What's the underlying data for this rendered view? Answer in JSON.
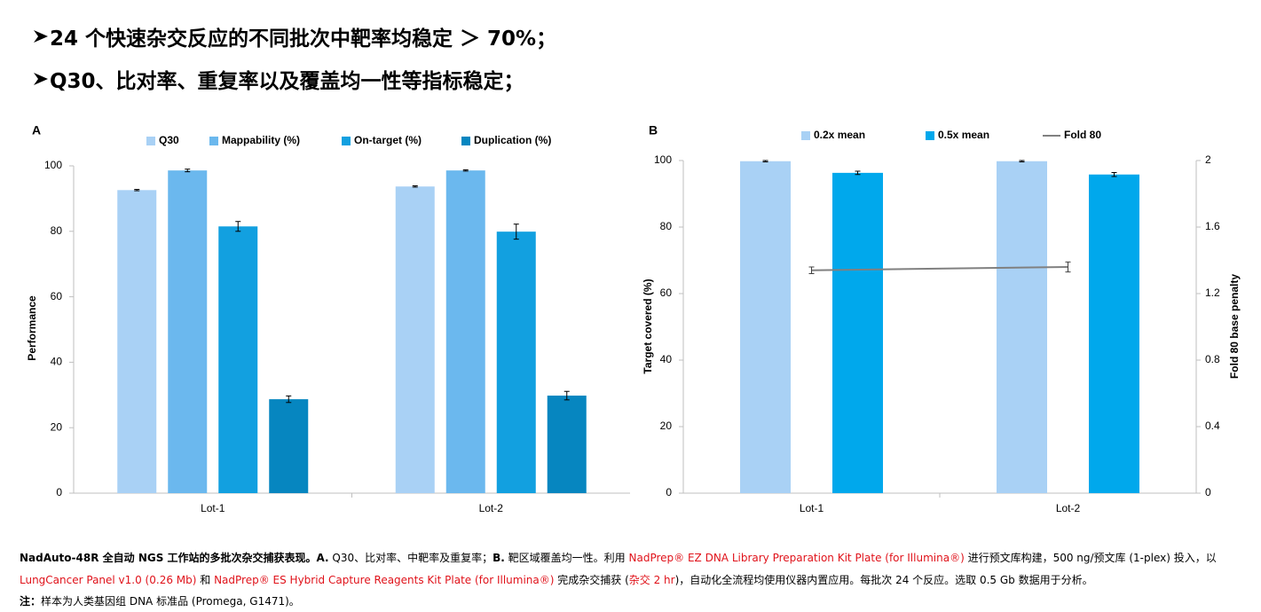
{
  "headings": [
    "24 个快速杂交反应的不同批次中靶率均稳定 ＞ 70%；",
    "Q30、比对率、重复率以及覆盖均一性等指标稳定；"
  ],
  "chart_data": [
    {
      "type": "bar",
      "label": "A",
      "ylabel": "Performance",
      "categories": [
        "Lot-1",
        "Lot-2"
      ],
      "series": [
        {
          "name": "Q30",
          "color": "#a9d1f5",
          "values": [
            92.6,
            93.7
          ],
          "errors": [
            0.2,
            0.2
          ]
        },
        {
          "name": "Mappability (%)",
          "color": "#6bb8ee",
          "values": [
            98.6,
            98.6
          ],
          "errors": [
            0.4,
            0.2
          ]
        },
        {
          "name": "On-target (%)",
          "color": "#12a0e0",
          "values": [
            81.5,
            79.9
          ],
          "errors": [
            1.5,
            2.3
          ]
        },
        {
          "name": "Duplication (%)",
          "color": "#0686c0",
          "values": [
            28.7,
            29.8
          ],
          "errors": [
            1.0,
            1.3
          ]
        }
      ],
      "ylim": [
        0,
        100
      ],
      "yticks": [
        0,
        20,
        40,
        60,
        80,
        100
      ],
      "grid": false
    },
    {
      "type": "bar",
      "label": "B",
      "ylabel": "Target covered (%)",
      "y2label": "Fold 80 base penalty",
      "categories": [
        "Lot-1",
        "Lot-2"
      ],
      "series": [
        {
          "name": "0.2x mean",
          "color": "#a9d1f5",
          "values": [
            99.8,
            99.8
          ],
          "errors": [
            0.2,
            0.2
          ]
        },
        {
          "name": "0.5x mean",
          "color": "#00a8ec",
          "values": [
            96.3,
            95.8
          ],
          "errors": [
            0.5,
            0.6
          ]
        },
        {
          "name": "Fold 80",
          "color": "#808080",
          "type": "line",
          "axis": "y2",
          "values": [
            1.34,
            1.36
          ],
          "errors": [
            0.02,
            0.03
          ]
        }
      ],
      "ylim": [
        0,
        100
      ],
      "yticks": [
        0,
        20,
        40,
        60,
        80,
        100
      ],
      "y2lim": [
        0,
        2
      ],
      "y2ticks": [
        0,
        0.4,
        0.8,
        1.2,
        1.6,
        2
      ],
      "grid": false
    }
  ],
  "caption": [
    [
      {
        "text": "NadAuto-48R 全自动 NGS 工作站的多批次杂交捕获表现。A.",
        "style": "bold"
      },
      {
        "text": " Q30、比对率、中靶率及重复率；",
        "style": "normal"
      },
      {
        "text": "B.",
        "style": "bold"
      },
      {
        "text": " 靶区域覆盖均一性。利用 ",
        "style": "normal"
      },
      {
        "text": "NadPrep® EZ DNA Library Preparation Kit Plate (for Illumina®)",
        "style": "red"
      },
      {
        "text": " 进行预文库构建，500 ng/预文库 (1-plex) 投入，以",
        "style": "normal"
      }
    ],
    [
      {
        "text": "LungCancer Panel v1.0 (0.26 Mb)",
        "style": "red"
      },
      {
        "text": " 和 ",
        "style": "normal"
      },
      {
        "text": "NadPrep® ES Hybrid Capture Reagents Kit Plate (for Illumina®)",
        "style": "red"
      },
      {
        "text": " 完成杂交捕获 (",
        "style": "normal"
      },
      {
        "text": "杂交 2 hr",
        "style": "red"
      },
      {
        "text": ")，自动化全流程均使用仪器内置应用。每批次 24 个反应。选取 0.5 Gb 数据用于分析。",
        "style": "normal"
      }
    ],
    [
      {
        "text": "注：",
        "style": "bold"
      },
      {
        "text": "样本为人类基因组 DNA 标准品 (Promega, G1471)。",
        "style": "normal"
      }
    ]
  ]
}
